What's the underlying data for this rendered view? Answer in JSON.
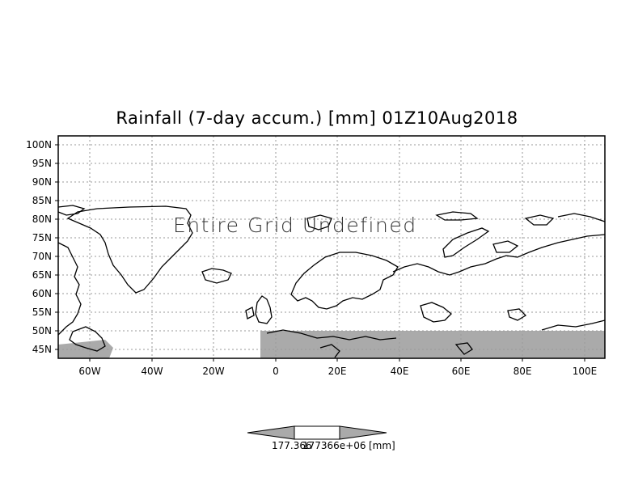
{
  "title": "Rainfall (7-day accum.) [mm] 01Z10Aug2018",
  "message": "Entire Grid Undefined",
  "lat_labels": [
    "100N",
    "95N",
    "90N",
    "85N",
    "80N",
    "75N",
    "70N",
    "65N",
    "60N",
    "55N",
    "50N",
    "45N"
  ],
  "lon_labels": [
    "60W",
    "40W",
    "20W",
    "0",
    "20E",
    "40E",
    "60E",
    "80E",
    "100E"
  ],
  "colorbar": {
    "left_value": "177.366",
    "right_value": "177366e+06",
    "unit": "[mm]"
  },
  "colors": {
    "land_shaded": "#aaaaaa",
    "coastline": "#000000",
    "grid": "#999999"
  }
}
